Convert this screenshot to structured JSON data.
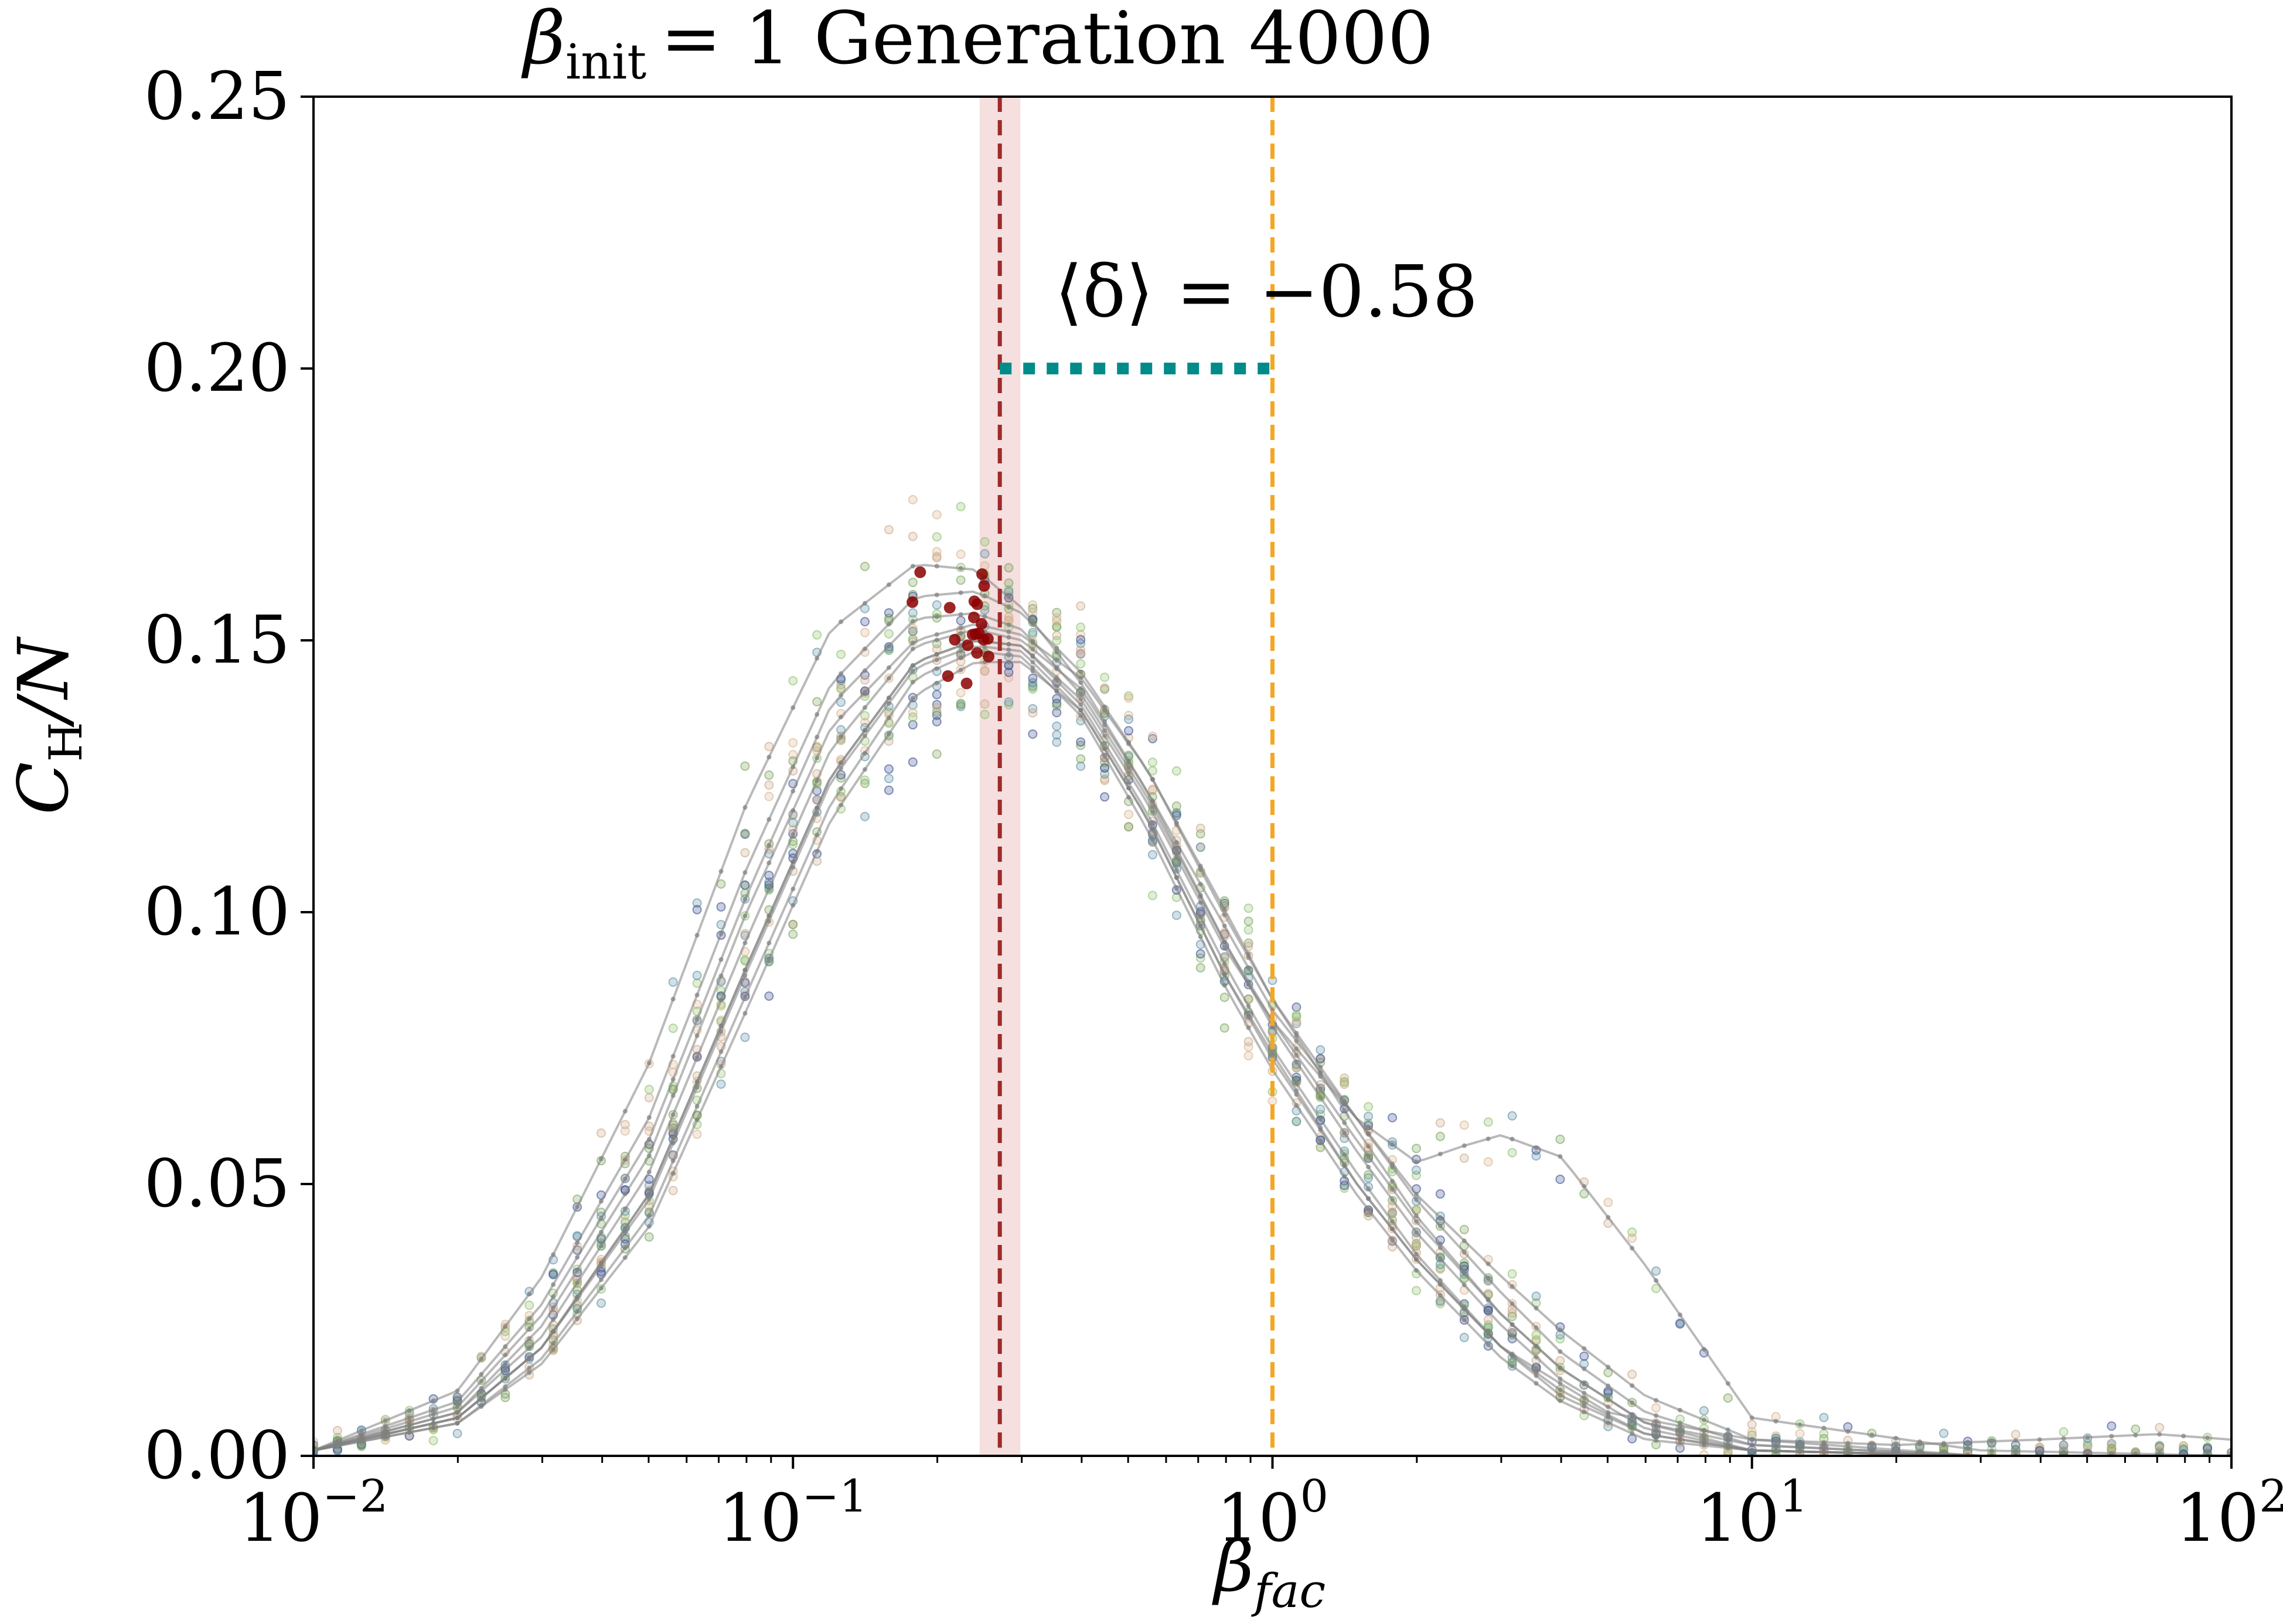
{
  "title": {
    "symbol": "β",
    "subscript": "init",
    "rest": "= 1 Generation 4000"
  },
  "annotation": {
    "text": "⟨δ⟩ = −0.58",
    "y_value": 0.2,
    "x_from": 0.27,
    "x_to": 1.0
  },
  "colors": {
    "curve": "#808080",
    "peak_line": "#9e2a2a",
    "peak_band": "#e8b7b7",
    "reference_line": "#f5a623",
    "delta_bar": "#008b8b",
    "peak_points": "#8b0000",
    "scatter_palette": [
      "#d9b48f",
      "#8fbf6f",
      "#5f8fa6",
      "#3b4f8f",
      "#7aa35a",
      "#c9a88a"
    ]
  },
  "chart_data": {
    "type": "line",
    "x_scale": "log",
    "xlim": [
      0.01,
      100
    ],
    "ylim": [
      0,
      0.25
    ],
    "xlabel": {
      "symbol": "β",
      "subscript": "fac"
    },
    "ylabel": {
      "symbol": "C",
      "subscript": "H",
      "rest": "/N"
    },
    "x_ticks": [
      {
        "value": 0.01,
        "base": "10",
        "exp": "−2"
      },
      {
        "value": 0.1,
        "base": "10",
        "exp": "−1"
      },
      {
        "value": 1,
        "base": "10",
        "exp": "0"
      },
      {
        "value": 10,
        "base": "10",
        "exp": "1"
      },
      {
        "value": 100,
        "base": "10",
        "exp": "2"
      }
    ],
    "y_ticks": [
      {
        "value": 0,
        "label": "0.00"
      },
      {
        "value": 0.05,
        "label": "0.05"
      },
      {
        "value": 0.1,
        "label": "0.10"
      },
      {
        "value": 0.15,
        "label": "0.15"
      },
      {
        "value": 0.2,
        "label": "0.20"
      },
      {
        "value": 0.25,
        "label": "0.25"
      }
    ],
    "grid": false,
    "legend": "none",
    "vertical_lines": [
      {
        "x": 0.27,
        "style": "dashed",
        "role": "mean peak"
      },
      {
        "x": 1.0,
        "style": "dashed",
        "role": "critical reference"
      }
    ],
    "shaded_band": {
      "x_from": 0.245,
      "x_to": 0.298
    },
    "series": [
      {
        "x": [
          0.01,
          0.02,
          0.03,
          0.05,
          0.08,
          0.12,
          0.18,
          0.24,
          0.3,
          0.4,
          0.55,
          0.8,
          1.0,
          1.5,
          2.0,
          3.0,
          4.0,
          6.0,
          10,
          30,
          100
        ],
        "y": [
          0.001,
          0.007,
          0.02,
          0.048,
          0.09,
          0.125,
          0.146,
          0.15,
          0.149,
          0.138,
          0.118,
          0.09,
          0.075,
          0.052,
          0.037,
          0.02,
          0.012,
          0.004,
          0.001,
          0.0,
          0.0
        ]
      },
      {
        "x": [
          0.01,
          0.02,
          0.03,
          0.05,
          0.08,
          0.12,
          0.18,
          0.24,
          0.3,
          0.4,
          0.55,
          0.8,
          1.0,
          1.5,
          2.0,
          3.0,
          4.0,
          6.0,
          10,
          30,
          100
        ],
        "y": [
          0.001,
          0.008,
          0.022,
          0.052,
          0.095,
          0.13,
          0.149,
          0.152,
          0.15,
          0.141,
          0.122,
          0.094,
          0.079,
          0.056,
          0.041,
          0.024,
          0.014,
          0.005,
          0.001,
          0.0,
          0.0
        ]
      },
      {
        "x": [
          0.01,
          0.02,
          0.03,
          0.05,
          0.08,
          0.12,
          0.18,
          0.24,
          0.3,
          0.4,
          0.55,
          0.8,
          1.0,
          1.5,
          2.0,
          3.0,
          4.0,
          6.0,
          10,
          30,
          100
        ],
        "y": [
          0.001,
          0.006,
          0.018,
          0.044,
          0.085,
          0.12,
          0.143,
          0.148,
          0.147,
          0.136,
          0.115,
          0.086,
          0.071,
          0.048,
          0.034,
          0.018,
          0.01,
          0.003,
          0.001,
          0.0,
          0.0
        ]
      },
      {
        "x": [
          0.01,
          0.02,
          0.03,
          0.05,
          0.08,
          0.12,
          0.18,
          0.24,
          0.3,
          0.4,
          0.55,
          0.8,
          1.0,
          1.5,
          2.0,
          3.0,
          4.0,
          6.0,
          10,
          30,
          100
        ],
        "y": [
          0.001,
          0.01,
          0.028,
          0.062,
          0.108,
          0.142,
          0.158,
          0.159,
          0.155,
          0.144,
          0.126,
          0.1,
          0.084,
          0.062,
          0.047,
          0.03,
          0.019,
          0.008,
          0.002,
          0.0,
          0.0
        ]
      },
      {
        "x": [
          0.01,
          0.02,
          0.03,
          0.05,
          0.08,
          0.12,
          0.18,
          0.24,
          0.3,
          0.4,
          0.55,
          0.8,
          1.0,
          1.5,
          2.0,
          3.0,
          4.0,
          6.0,
          10,
          30,
          100
        ],
        "y": [
          0.001,
          0.012,
          0.033,
          0.072,
          0.12,
          0.152,
          0.164,
          0.163,
          0.156,
          0.142,
          0.122,
          0.097,
          0.082,
          0.062,
          0.048,
          0.033,
          0.023,
          0.011,
          0.003,
          0.0,
          0.0
        ]
      },
      {
        "x": [
          0.01,
          0.02,
          0.03,
          0.05,
          0.08,
          0.12,
          0.18,
          0.24,
          0.3,
          0.4,
          0.55,
          0.8,
          1.0,
          1.5,
          2.0,
          2.5,
          3.0,
          4.0,
          6.0,
          10,
          30,
          100
        ],
        "y": [
          0.001,
          0.007,
          0.02,
          0.048,
          0.09,
          0.125,
          0.146,
          0.15,
          0.149,
          0.139,
          0.12,
          0.093,
          0.08,
          0.062,
          0.054,
          0.057,
          0.059,
          0.055,
          0.035,
          0.007,
          0.001,
          0.0
        ]
      },
      {
        "x": [
          0.01,
          0.02,
          0.03,
          0.05,
          0.08,
          0.12,
          0.18,
          0.24,
          0.3,
          0.4,
          0.55,
          0.8,
          1.0,
          1.5,
          2.0,
          3.0,
          5.0,
          10,
          20,
          40,
          70,
          100
        ],
        "y": [
          0.001,
          0.007,
          0.02,
          0.047,
          0.089,
          0.124,
          0.145,
          0.149,
          0.148,
          0.137,
          0.117,
          0.088,
          0.074,
          0.05,
          0.036,
          0.02,
          0.008,
          0.003,
          0.002,
          0.003,
          0.004,
          0.003
        ]
      },
      {
        "x": [
          0.01,
          0.02,
          0.03,
          0.05,
          0.08,
          0.12,
          0.18,
          0.24,
          0.3,
          0.4,
          0.55,
          0.8,
          1.0,
          1.5,
          2.0,
          3.0,
          4.0,
          6.0,
          10,
          30,
          100
        ],
        "y": [
          0.001,
          0.008,
          0.024,
          0.055,
          0.1,
          0.134,
          0.15,
          0.153,
          0.151,
          0.143,
          0.126,
          0.099,
          0.084,
          0.06,
          0.044,
          0.026,
          0.016,
          0.006,
          0.002,
          0.0,
          0.0
        ]
      },
      {
        "x": [
          0.01,
          0.02,
          0.03,
          0.05,
          0.08,
          0.12,
          0.18,
          0.24,
          0.3,
          0.4,
          0.55,
          0.8,
          1.0,
          1.5,
          2.0,
          3.0,
          4.0,
          6.0,
          10,
          30,
          100
        ],
        "y": [
          0.001,
          0.006,
          0.017,
          0.042,
          0.082,
          0.117,
          0.14,
          0.146,
          0.146,
          0.137,
          0.117,
          0.088,
          0.073,
          0.05,
          0.036,
          0.02,
          0.011,
          0.004,
          0.001,
          0.0,
          0.0
        ]
      },
      {
        "x": [
          0.01,
          0.02,
          0.03,
          0.05,
          0.08,
          0.12,
          0.18,
          0.24,
          0.3,
          0.4,
          0.55,
          0.8,
          1.0,
          1.5,
          2.0,
          3.0,
          4.0,
          6.0,
          10,
          30,
          100
        ],
        "y": [
          0.001,
          0.009,
          0.026,
          0.058,
          0.103,
          0.138,
          0.154,
          0.155,
          0.152,
          0.14,
          0.121,
          0.094,
          0.08,
          0.058,
          0.043,
          0.026,
          0.016,
          0.006,
          0.001,
          0.0,
          0.0
        ]
      }
    ]
  }
}
